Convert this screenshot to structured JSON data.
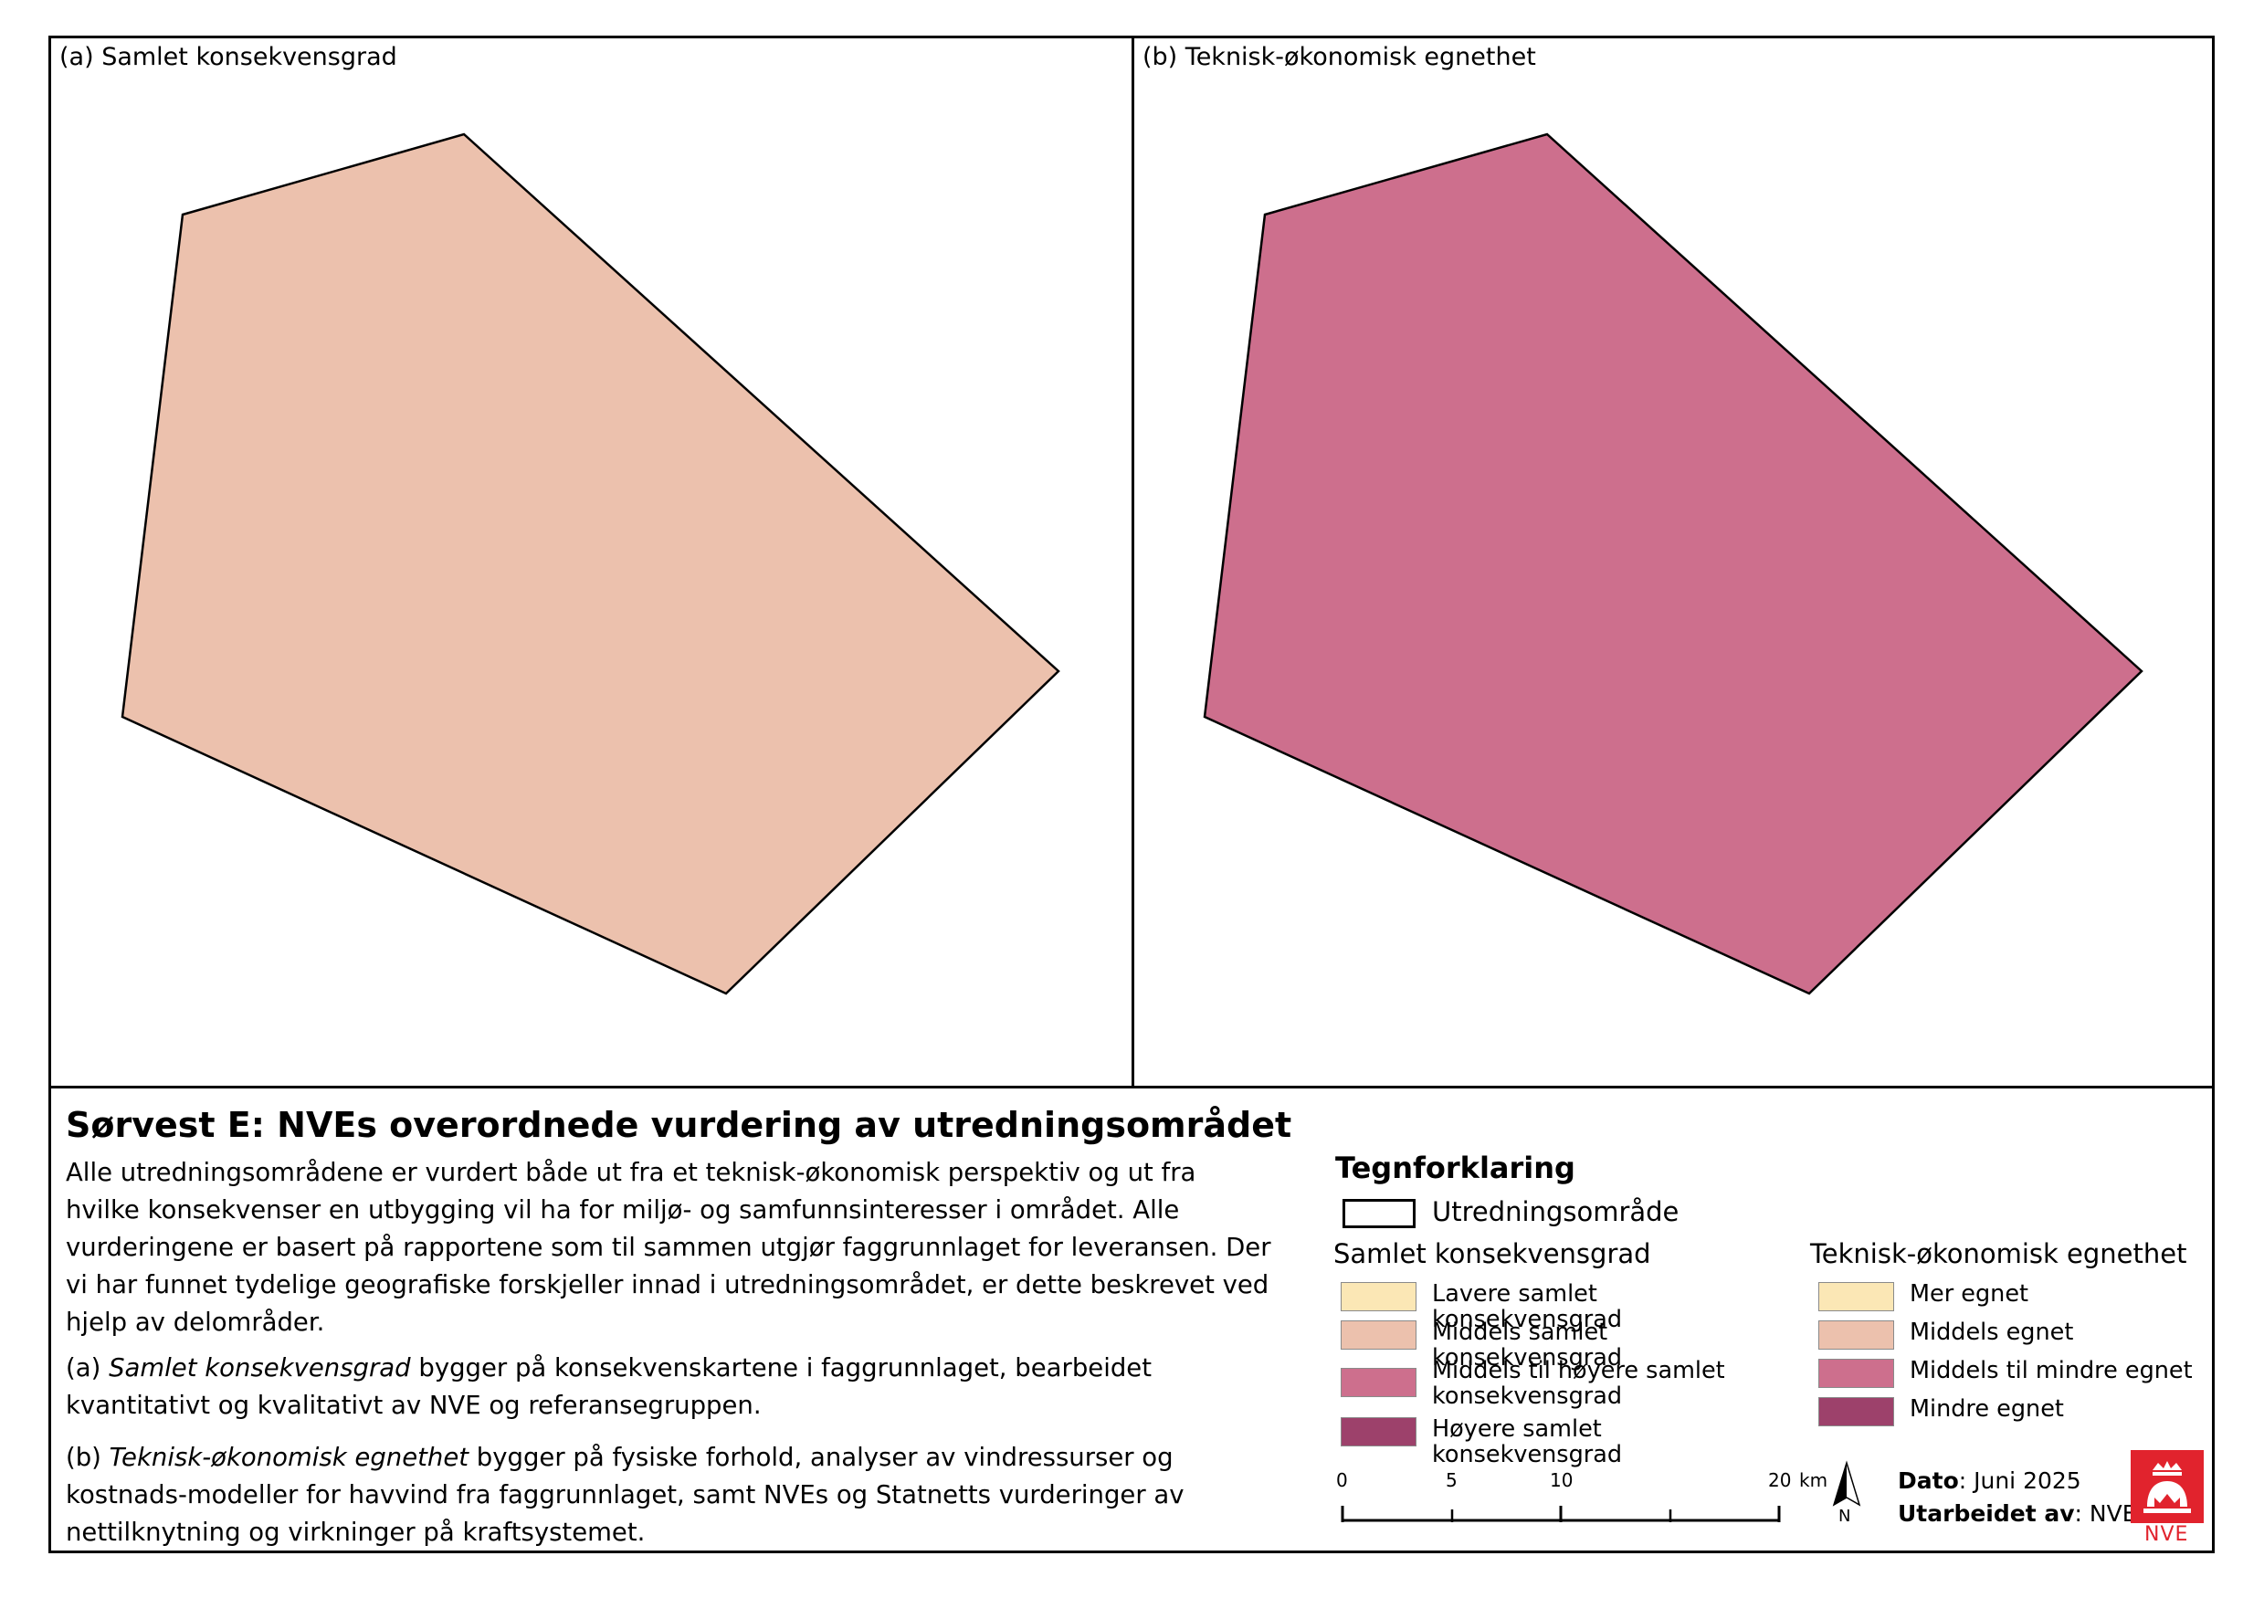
{
  "panels": {
    "a": {
      "title": "(a) Samlet konsekvensgrad",
      "fill": "#ecc1ad",
      "class": "Middels samlet konsekvensgrad"
    },
    "b": {
      "title": "(b) Teknisk-økonomisk egnethet",
      "fill": "#cd6f8d",
      "class": "Middels til mindre egnet"
    }
  },
  "main_title": "Sørvest E: NVEs overordnede vurdering av utredningsområdet",
  "paragraphs": {
    "p1": "Alle utredningsområdene er vurdert både ut fra et teknisk-økonomisk perspektiv og ut fra hvilke konsekvenser en utbygging vil ha for miljø- og samfunnsinteresser i området. Alle vurderingene er basert på rapportene som til sammen utgjør faggrunnlaget for leveransen. Der vi har funnet tydelige geografiske forskjeller innad i utredningsområdet, er dette beskrevet ved hjelp av delområder.",
    "p2_prefix": "(a) ",
    "p2_term": "Samlet konsekvensgrad",
    "p2_rest": " bygger på konsekvenskartene i faggrunnlaget, bearbeidet kvantitativt og kvalitativt av NVE og referansegruppen.",
    "p3_prefix": "(b) ",
    "p3_term": "Teknisk-økonomisk egnethet",
    "p3_rest": " bygger på fysiske forhold, analyser av vindressurser og kostnads-modeller for havvind fra faggrunnlaget, samt NVEs og Statnetts vurderinger av nettilknytning og virkninger på kraftsystemet."
  },
  "legend": {
    "title": "Tegnforklaring",
    "study_area_label": "Utredningsområde",
    "group1_title": "Samlet konsekvensgrad",
    "group1_items": [
      {
        "label": "Lavere samlet konsekvensgrad",
        "color": "#fbe7b5"
      },
      {
        "label": "Middels samlet konsekvensgrad",
        "color": "#ecc1ad"
      },
      {
        "label": "Middels til høyere samlet konsekvensgrad",
        "color": "#cd6f8d"
      },
      {
        "label": "Høyere samlet konsekvensgrad",
        "color": "#9d416b"
      }
    ],
    "group2_title": "Teknisk-økonomisk egnethet",
    "group2_items": [
      {
        "label": "Mer egnet",
        "color": "#fbe7b5"
      },
      {
        "label": "Middels egnet",
        "color": "#ecc1ad"
      },
      {
        "label": "Middels til mindre egnet",
        "color": "#cd6f8d"
      },
      {
        "label": "Mindre egnet",
        "color": "#9d416b"
      }
    ]
  },
  "scale": {
    "labels": [
      "0",
      "5",
      "10",
      "20"
    ],
    "unit": "km"
  },
  "north_label": "N",
  "date": {
    "label": "Dato",
    "value": ": Juni 2025"
  },
  "prepared": {
    "label": "Utarbeidet av",
    "value": ": NVE"
  },
  "logo_text": "NVE"
}
